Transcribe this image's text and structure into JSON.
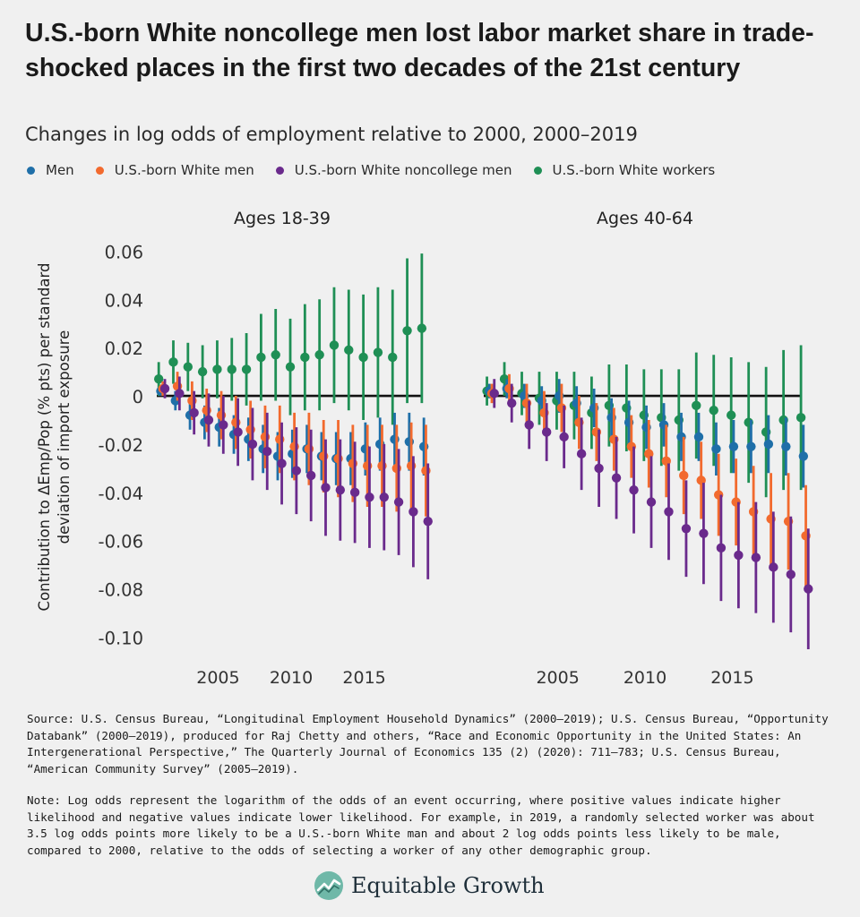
{
  "title": "U.S.-born White noncollege men lost labor market share in trade-shocked places in the first two decades of the 21st century",
  "subtitle": "Changes in log odds of employment relative to 2000, 2000–2019",
  "legend": [
    {
      "label": "Men",
      "color": "#1f6fa8"
    },
    {
      "label": "U.S.-born White men",
      "color": "#f26a2e"
    },
    {
      "label": "U.S.-born White noncollege men",
      "color": "#6a2a8c"
    },
    {
      "label": "U.S.-born White workers",
      "color": "#1f8f55"
    }
  ],
  "source": "Source: U.S. Census Bureau, “Longitudinal Employment Household Dynamics” (2000–2019); U.S. Census Bureau, “Opportunity Databank” (2000–2019), produced for Raj Chetty and others, “Race and Economic Opportunity in the United States: An Intergenerational Perspective,” The Quarterly Journal of Economics 135 (2) (2020): 711–783; U.S. Census Bureau, “American Community Survey” (2005–2019).",
  "note": "Note: Log odds represent the logarithm of the odds of an event occurring, where positive values indicate higher likelihood and negative values indicate lower likelihood. For example, in 2019, a randomly selected worker was about 3.5 log odds points more likely to be a U.S.-born White man and about 2 log odds points less likely to be male, compared to 2000, relative to the odds of selecting a worker of any other demographic group.",
  "logo": {
    "text": "Equitable Growth"
  },
  "chart_data": {
    "type": "scatter",
    "ylabel": "Contribution to ΔEmp/Pop (% pts) per standard deviation of import exposure",
    "ylim": [
      -0.105,
      0.062
    ],
    "yticks": [
      0.06,
      0.04,
      0.02,
      0,
      -0.02,
      -0.04,
      -0.06,
      -0.08,
      -0.1
    ],
    "ytick_labels": [
      "0.06",
      "0.04",
      "0.02",
      "0",
      "-0.02",
      "-0.04",
      "-0.06",
      "-0.08",
      "-0.10"
    ],
    "xlim": [
      2000.5,
      2019.5
    ],
    "xticks": [
      2005,
      2010,
      2015
    ],
    "xtick_labels": [
      "2005",
      "2010",
      "2015"
    ],
    "panels": [
      {
        "title": "Ages 18-39",
        "x": [
          2001,
          2002,
          2003,
          2004,
          2005,
          2006,
          2007,
          2008,
          2009,
          2010,
          2011,
          2012,
          2013,
          2014,
          2015,
          2016,
          2017,
          2018,
          2019
        ],
        "series": [
          {
            "name": "Men",
            "color": "#1f6fa8",
            "values": [
              0.002,
              -0.002,
              -0.008,
              -0.011,
              -0.013,
              -0.016,
              -0.018,
              -0.022,
              -0.025,
              -0.024,
              -0.022,
              -0.025,
              -0.026,
              -0.026,
              -0.022,
              -0.02,
              -0.018,
              -0.019,
              -0.021
            ],
            "err": [
              0.002,
              0.004,
              0.006,
              0.007,
              0.008,
              0.008,
              0.009,
              0.01,
              0.01,
              0.01,
              0.01,
              0.01,
              0.011,
              0.011,
              0.011,
              0.011,
              0.011,
              0.012,
              0.012
            ]
          },
          {
            "name": "U.S.-born White men",
            "color": "#f26a2e",
            "values": [
              0.003,
              0.004,
              -0.002,
              -0.006,
              -0.008,
              -0.011,
              -0.014,
              -0.017,
              -0.018,
              -0.021,
              -0.022,
              -0.025,
              -0.026,
              -0.028,
              -0.029,
              -0.029,
              -0.03,
              -0.029,
              -0.031
            ],
            "err": [
              0.003,
              0.006,
              0.008,
              0.009,
              0.01,
              0.011,
              0.012,
              0.013,
              0.014,
              0.014,
              0.015,
              0.015,
              0.016,
              0.016,
              0.017,
              0.017,
              0.018,
              0.018,
              0.019
            ]
          },
          {
            "name": "U.S.-born White noncollege men",
            "color": "#6a2a8c",
            "values": [
              0.003,
              0.001,
              -0.007,
              -0.01,
              -0.012,
              -0.015,
              -0.02,
              -0.023,
              -0.028,
              -0.031,
              -0.033,
              -0.038,
              -0.039,
              -0.04,
              -0.042,
              -0.042,
              -0.044,
              -0.048,
              -0.052
            ],
            "err": [
              0.004,
              0.007,
              0.009,
              0.011,
              0.012,
              0.014,
              0.015,
              0.016,
              0.017,
              0.018,
              0.019,
              0.02,
              0.021,
              0.021,
              0.021,
              0.022,
              0.022,
              0.023,
              0.024
            ]
          },
          {
            "name": "U.S.-born White workers",
            "color": "#1f8f55",
            "values": [
              0.007,
              0.014,
              0.012,
              0.01,
              0.011,
              0.011,
              0.011,
              0.016,
              0.017,
              0.012,
              0.016,
              0.017,
              0.021,
              0.019,
              0.016,
              0.018,
              0.016,
              0.027,
              0.028
            ]
          },
          {
            "name": "_err_workers",
            "color": "#1f8f55",
            "hidden": true,
            "values": [
              0.007,
              0.009,
              0.01,
              0.011,
              0.012,
              0.013,
              0.015,
              0.018,
              0.019,
              0.02,
              0.022,
              0.023,
              0.024,
              0.025,
              0.026,
              0.027,
              0.028,
              0.03,
              0.031
            ]
          }
        ]
      },
      {
        "title": "Ages 40-64",
        "x": [
          2001,
          2002,
          2003,
          2004,
          2005,
          2006,
          2007,
          2008,
          2009,
          2010,
          2011,
          2012,
          2013,
          2014,
          2015,
          2016,
          2017,
          2018,
          2019
        ],
        "series": [
          {
            "name": "Men",
            "color": "#1f6fa8",
            "values": [
              0.002,
              0.003,
              0.0,
              -0.002,
              0.0,
              -0.003,
              -0.005,
              -0.009,
              -0.011,
              -0.013,
              -0.012,
              -0.017,
              -0.017,
              -0.022,
              -0.021,
              -0.021,
              -0.02,
              -0.021,
              -0.025
            ],
            "err": [
              0.003,
              0.004,
              0.005,
              0.006,
              0.007,
              0.007,
              0.008,
              0.008,
              0.009,
              0.009,
              0.009,
              0.01,
              0.01,
              0.011,
              0.011,
              0.011,
              0.012,
              0.012,
              0.013
            ]
          },
          {
            "name": "U.S.-born White men",
            "color": "#f26a2e",
            "values": [
              0.001,
              0.003,
              -0.003,
              -0.007,
              -0.005,
              -0.011,
              -0.015,
              -0.018,
              -0.021,
              -0.024,
              -0.027,
              -0.033,
              -0.035,
              -0.041,
              -0.044,
              -0.048,
              -0.051,
              -0.052,
              -0.058
            ],
            "err": [
              0.004,
              0.006,
              0.008,
              0.009,
              0.01,
              0.011,
              0.012,
              0.013,
              0.013,
              0.014,
              0.015,
              0.016,
              0.016,
              0.017,
              0.018,
              0.019,
              0.019,
              0.02,
              0.021
            ]
          },
          {
            "name": "U.S.-born White noncollege men",
            "color": "#6a2a8c",
            "values": [
              0.001,
              -0.003,
              -0.012,
              -0.015,
              -0.017,
              -0.024,
              -0.03,
              -0.034,
              -0.039,
              -0.044,
              -0.048,
              -0.055,
              -0.057,
              -0.063,
              -0.066,
              -0.067,
              -0.071,
              -0.074,
              -0.08
            ],
            "err": [
              0.006,
              0.008,
              0.01,
              0.012,
              0.013,
              0.015,
              0.016,
              0.017,
              0.018,
              0.019,
              0.02,
              0.02,
              0.021,
              0.022,
              0.022,
              0.023,
              0.023,
              0.024,
              0.025
            ]
          },
          {
            "name": "U.S.-born White workers",
            "color": "#1f8f55",
            "values": [
              0.002,
              0.007,
              0.001,
              -0.001,
              -0.002,
              -0.004,
              -0.007,
              -0.004,
              -0.005,
              -0.008,
              -0.009,
              -0.01,
              -0.004,
              -0.006,
              -0.008,
              -0.011,
              -0.015,
              -0.01,
              -0.009
            ]
          },
          {
            "name": "_err_workers",
            "color": "#1f8f55",
            "hidden": true,
            "values": [
              0.006,
              0.007,
              0.009,
              0.011,
              0.012,
              0.014,
              0.015,
              0.017,
              0.018,
              0.019,
              0.02,
              0.021,
              0.022,
              0.023,
              0.024,
              0.025,
              0.027,
              0.029,
              0.03
            ]
          }
        ]
      }
    ]
  }
}
